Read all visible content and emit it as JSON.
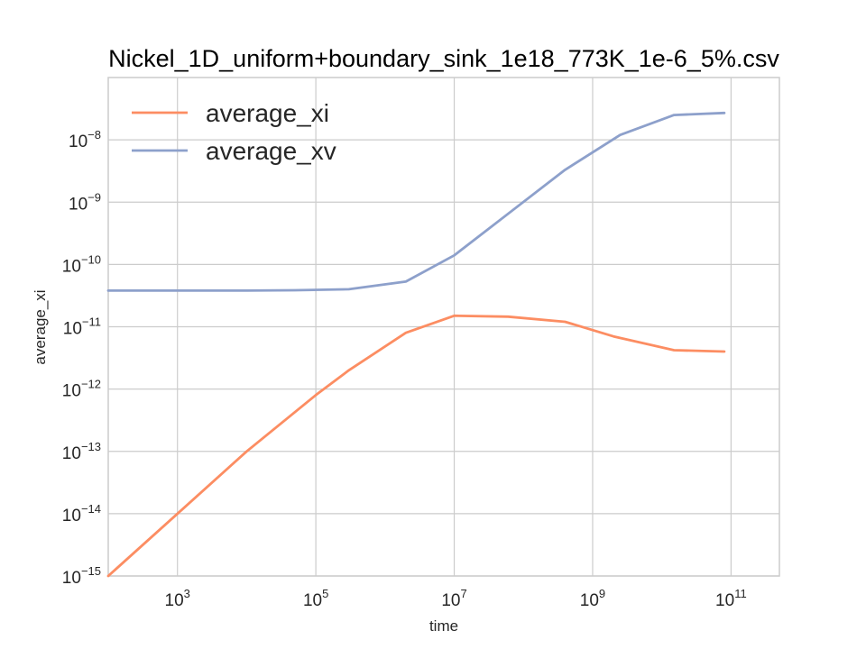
{
  "chart_data": {
    "type": "line",
    "title": "Nickel_1D_uniform+boundary_sink_1e18_773K_1e-6_5%.csv",
    "xlabel": "time",
    "ylabel": "average_xi",
    "xscale": "log",
    "yscale": "log",
    "xlim": [
      100,
      500000000000
    ],
    "ylim": [
      1e-15,
      1e-07
    ],
    "grid": true,
    "legend_position": "top-left",
    "x_ticks": [
      {
        "value": 1000,
        "base": "10",
        "exp": "3"
      },
      {
        "value": 100000,
        "base": "10",
        "exp": "5"
      },
      {
        "value": 10000000,
        "base": "10",
        "exp": "7"
      },
      {
        "value": 1000000000,
        "base": "10",
        "exp": "9"
      },
      {
        "value": 100000000000,
        "base": "10",
        "exp": "11"
      }
    ],
    "y_ticks": [
      {
        "value": 1e-08,
        "base": "10",
        "exp": "−8"
      },
      {
        "value": 1e-09,
        "base": "10",
        "exp": "−9"
      },
      {
        "value": 1e-10,
        "base": "10",
        "exp": "−10"
      },
      {
        "value": 1e-11,
        "base": "10",
        "exp": "−11"
      },
      {
        "value": 1e-12,
        "base": "10",
        "exp": "−12"
      },
      {
        "value": 1e-13,
        "base": "10",
        "exp": "−13"
      },
      {
        "value": 1e-14,
        "base": "10",
        "exp": "−14"
      },
      {
        "value": 1e-15,
        "base": "10",
        "exp": "−15"
      }
    ],
    "series": [
      {
        "name": "average_xi",
        "color": "#fc8d62",
        "x": [
          100,
          1000,
          10000,
          100000,
          300000,
          2000000,
          10000000,
          60000000,
          400000000,
          2000000000,
          15000000000,
          80000000000
        ],
        "y": [
          1e-15,
          1e-14,
          1e-13,
          8e-13,
          2e-12,
          8e-12,
          1.5e-11,
          1.45e-11,
          1.2e-11,
          7e-12,
          4.2e-12,
          4e-12
        ]
      },
      {
        "name": "average_xv",
        "color": "#8da0cb",
        "x": [
          100,
          1000,
          10000,
          50000,
          300000,
          2000000,
          10000000,
          60000000,
          400000000,
          2500000000,
          15000000000,
          80000000000
        ],
        "y": [
          3.8e-11,
          3.8e-11,
          3.8e-11,
          3.85e-11,
          4e-11,
          5.3e-11,
          1.4e-10,
          6.5e-10,
          3.3e-09,
          1.2e-08,
          2.5e-08,
          2.7e-08
        ]
      }
    ]
  }
}
